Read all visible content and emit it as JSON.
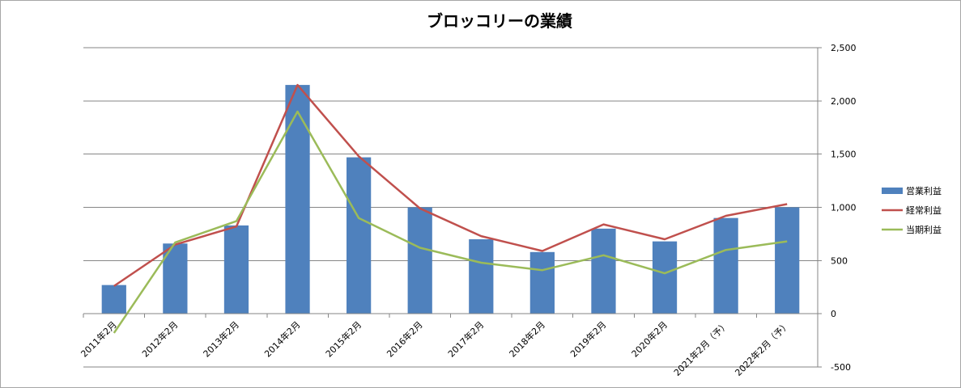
{
  "chart_data": {
    "type": "bar",
    "title": "ブロッコリーの業績",
    "categories": [
      "2011年2月",
      "2012年2月",
      "2013年2月",
      "2014年2月",
      "2015年2月",
      "2016年2月",
      "2017年2月",
      "2018年2月",
      "2019年2月",
      "2020年2月",
      "2021年2月（予）",
      "2022年2月（予）"
    ],
    "ylim": [
      -500,
      2500
    ],
    "yticks": [
      -500,
      0,
      500,
      1000,
      1500,
      2000,
      2500
    ],
    "ytick_labels": [
      "-500",
      "0",
      "500",
      "1,000",
      "1,500",
      "2,000",
      "2,500"
    ],
    "y_axis_side": "right",
    "grid": true,
    "legend_position": "right",
    "series": [
      {
        "name": "営業利益",
        "kind": "bar",
        "color": "#4f81bd",
        "values": [
          270,
          660,
          830,
          2150,
          1470,
          1000,
          700,
          580,
          800,
          680,
          900,
          1000
        ]
      },
      {
        "name": "経常利益",
        "kind": "line",
        "color": "#c0504d",
        "values": [
          260,
          650,
          820,
          2150,
          1480,
          990,
          730,
          590,
          840,
          700,
          920,
          1030
        ]
      },
      {
        "name": "当期利益",
        "kind": "line",
        "color": "#9bbb59",
        "values": [
          -180,
          670,
          870,
          1900,
          900,
          620,
          480,
          410,
          550,
          380,
          600,
          680
        ]
      }
    ]
  }
}
